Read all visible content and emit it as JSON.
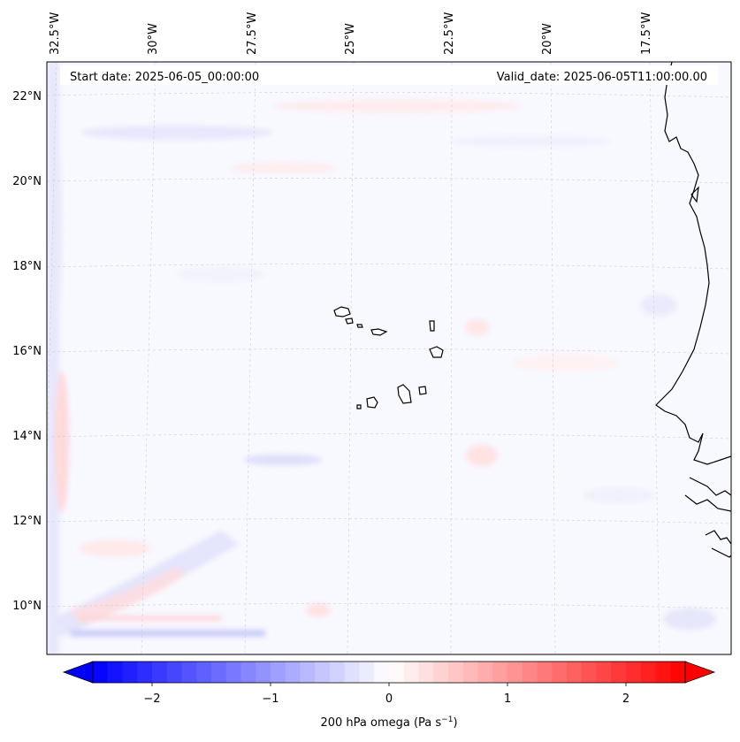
{
  "header": {
    "start_date": "Start date: 2025-06-05_00:00:00",
    "valid_date": "Valid_date: 2025-06-05T11:00:00.00"
  },
  "map": {
    "lon_labels": [
      "32.5°W",
      "30°W",
      "27.5°W",
      "25°W",
      "22.5°W",
      "20°W",
      "17.5°W"
    ],
    "lat_labels": [
      "22°N",
      "20°N",
      "18°N",
      "16°N",
      "14°N",
      "12°N",
      "10°N"
    ],
    "gridlines": true,
    "features": [
      "Cabo Verde islands",
      "West African coastline"
    ]
  },
  "colorbar": {
    "ticks": [
      -2,
      -1,
      0,
      1,
      2
    ],
    "tick_labels": [
      "−2",
      "−1",
      "0",
      "1",
      "2"
    ],
    "range": [
      -2.5,
      2.5
    ],
    "label_prefix": "200 hPa omega (Pa s",
    "label_exp": "−1",
    "label_suffix": ")",
    "colors": {
      "negative": "#0000ff",
      "zero": "#ffffff",
      "positive": "#ff0000"
    }
  },
  "chart_data": {
    "type": "heatmap",
    "title": "",
    "variable": "200 hPa omega",
    "units": "Pa s^-1",
    "colorbar_range": [
      -2.5,
      2.5
    ],
    "colorbar_ticks": [
      -2,
      -1,
      0,
      1,
      2
    ],
    "x_ticks": [
      "32.5°W",
      "30°W",
      "27.5°W",
      "25°W",
      "22.5°W",
      "20°W",
      "17.5°W"
    ],
    "y_ticks": [
      "22°N",
      "20°N",
      "18°N",
      "16°N",
      "14°N",
      "12°N",
      "10°N"
    ],
    "xlabel": "",
    "ylabel": "",
    "field_note": "values mostly near 0 (about -0.5 to 0.7)"
  }
}
